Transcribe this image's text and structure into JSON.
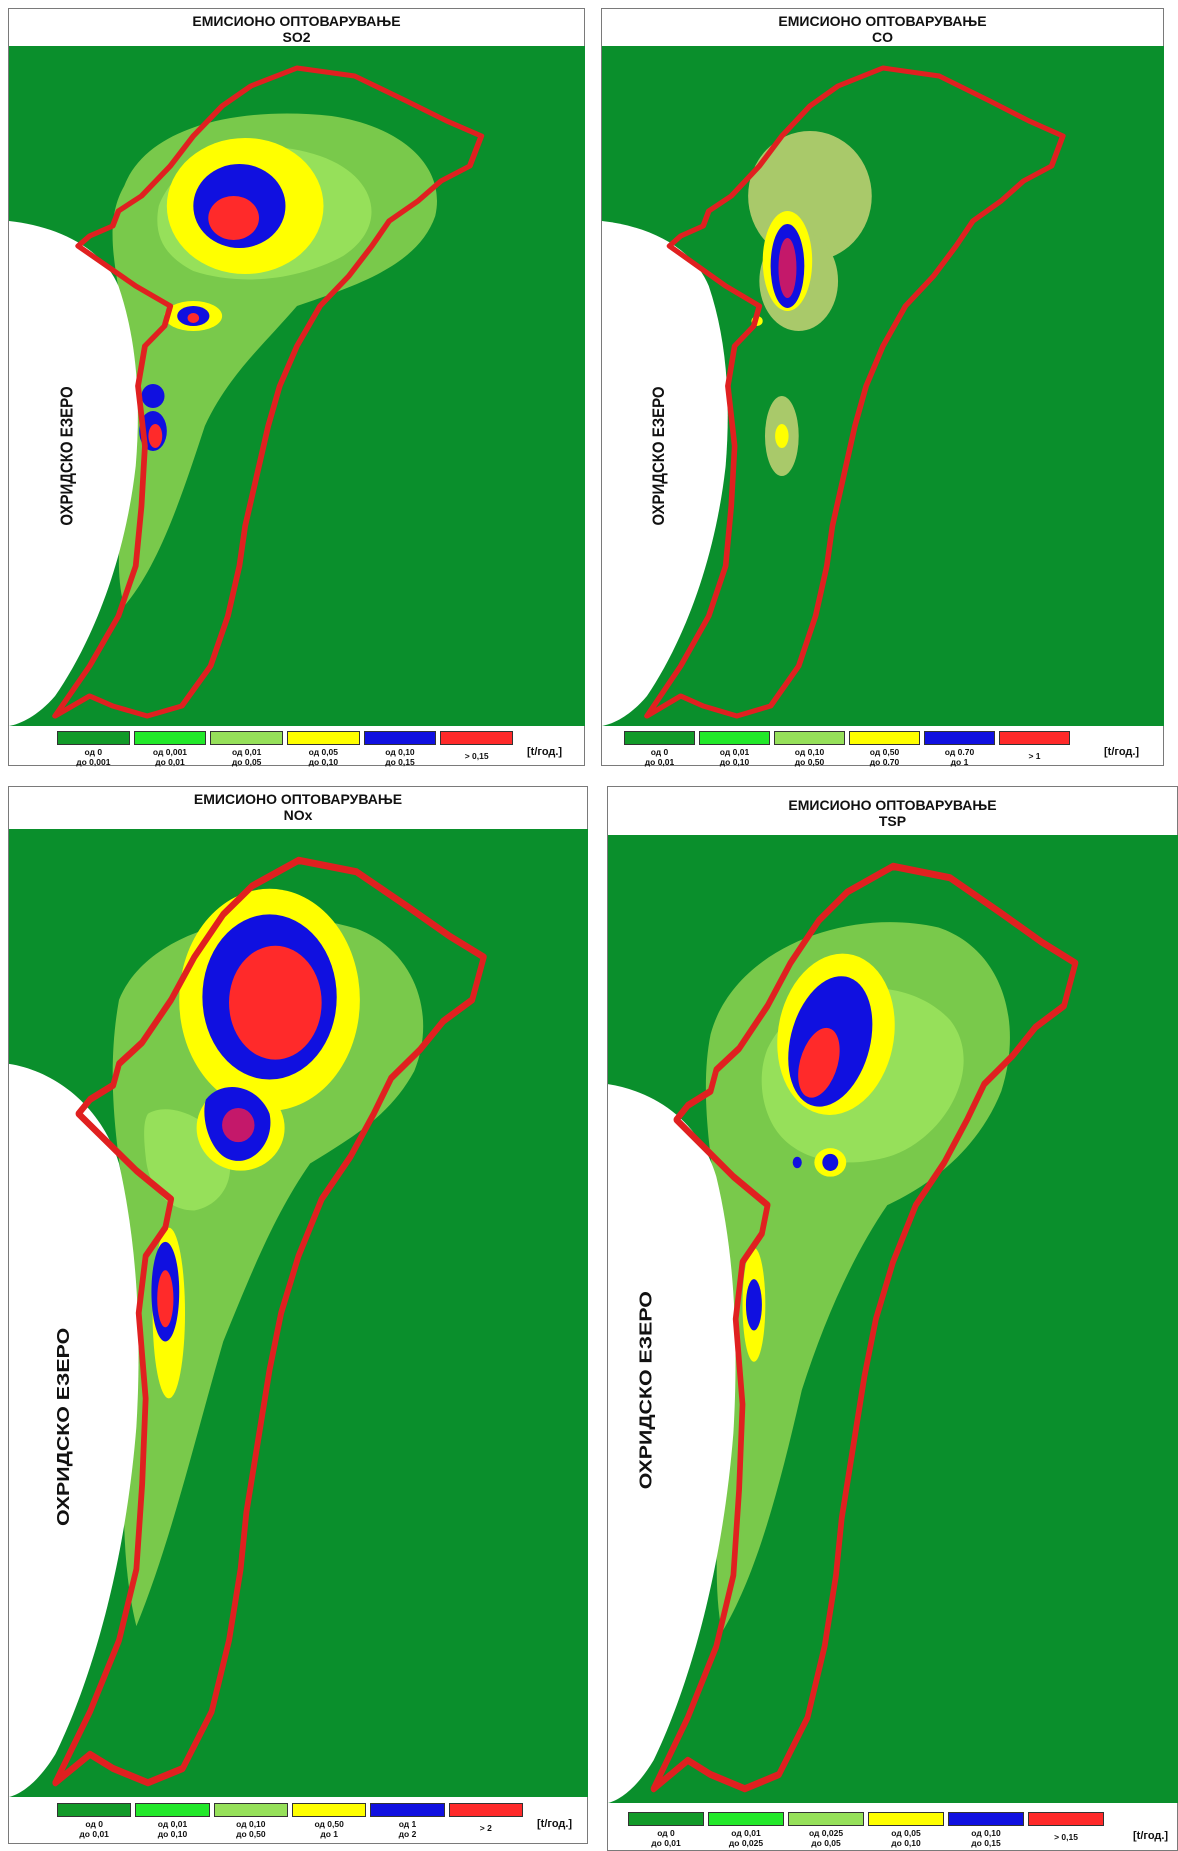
{
  "unit_label": "[t/год.]",
  "lake_label": "ОХРИДСКО ЕЗЕРО",
  "colors": {
    "background": "#0a8f2c",
    "boundary": "#e02020",
    "lake": "#ffffff",
    "classes": [
      "#129a29",
      "#22e82a",
      "#96e05a",
      "#ffff00",
      "#1010e0",
      "#ff2a2a"
    ]
  },
  "panels": [
    {
      "title": "ЕМИСИОНО ОПТОВАРУВАЊЕ",
      "pollutant": "SO2",
      "legend": [
        {
          "line1": "од 0",
          "line2": "до 0,001"
        },
        {
          "line1": "од 0,001",
          "line2": "до 0,01"
        },
        {
          "line1": "од 0,01",
          "line2": "до 0,05"
        },
        {
          "line1": "од 0,05",
          "line2": "до 0,10"
        },
        {
          "line1": "од 0,10",
          "line2": "до 0,15"
        },
        {
          "line1": "> 0,15",
          "line2": ""
        }
      ]
    },
    {
      "title": "ЕМИСИОНО ОПТОВАРУВАЊЕ",
      "pollutant": "CO",
      "legend": [
        {
          "line1": "од 0",
          "line2": "до 0,01"
        },
        {
          "line1": "од 0,01",
          "line2": "до 0,10"
        },
        {
          "line1": "од 0,10",
          "line2": "до 0,50"
        },
        {
          "line1": "од 0,50",
          "line2": "до 0.70"
        },
        {
          "line1": "од 0.70",
          "line2": "до 1"
        },
        {
          "line1": "> 1",
          "line2": ""
        }
      ]
    },
    {
      "title": "ЕМИСИОНО ОПТОВАРУВАЊЕ",
      "pollutant": "NOx",
      "legend": [
        {
          "line1": "од 0",
          "line2": "до 0,01"
        },
        {
          "line1": "од 0,01",
          "line2": "до 0,10"
        },
        {
          "line1": "од 0,10",
          "line2": "до 0,50"
        },
        {
          "line1": "од 0,50",
          "line2": "до 1"
        },
        {
          "line1": "од 1",
          "line2": "до 2"
        },
        {
          "line1": "> 2",
          "line2": ""
        }
      ]
    },
    {
      "title": "ЕМИСИОНО ОПТОВАРУВАЊЕ",
      "pollutant": "TSP",
      "legend": [
        {
          "line1": "од 0",
          "line2": "до 0,01"
        },
        {
          "line1": "од 0,01",
          "line2": "до 0,025"
        },
        {
          "line1": "од 0,025",
          "line2": "до 0,05"
        },
        {
          "line1": "од 0,05",
          "line2": "до 0,10"
        },
        {
          "line1": "од 0,10",
          "line2": "до 0,15"
        },
        {
          "line1": "> 0,15",
          "line2": ""
        }
      ]
    }
  ]
}
